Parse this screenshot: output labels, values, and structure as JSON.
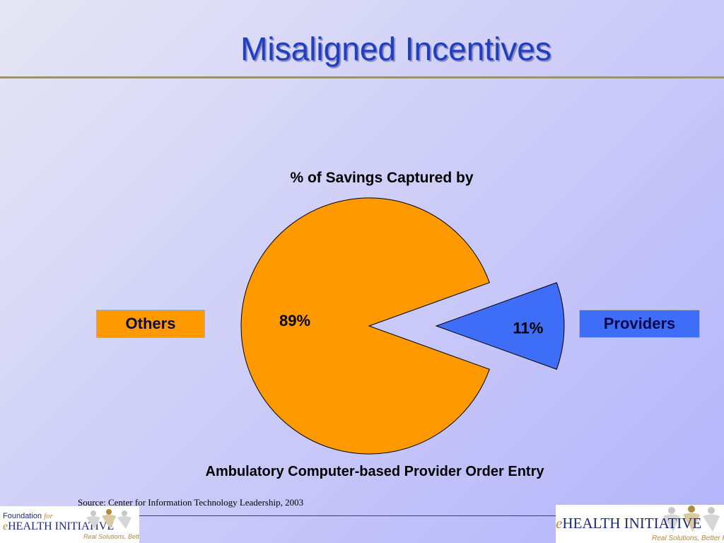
{
  "slide": {
    "title": "Misaligned Incentives",
    "source": "Source:  Center for Information Technology Leadership, 2003"
  },
  "chart_data": {
    "type": "pie",
    "title": "% of Savings Captured by",
    "xlabel": "Ambulatory Computer-based Provider Order Entry",
    "slices": [
      {
        "label": "Others",
        "value": 89,
        "value_label": "89%",
        "color": "#ff9900",
        "exploded": false
      },
      {
        "label": "Providers",
        "value": 11,
        "value_label": "11%",
        "color": "#3e6ef8",
        "exploded": true
      }
    ]
  },
  "logos": {
    "left": {
      "prefix": "Foundation",
      "prefix_for": "for",
      "brand_e": "e",
      "brand": "HEALTH INITIATIVE",
      "tagline": "Real Solutions, Better Health"
    },
    "right": {
      "brand_e": "e",
      "brand": "HEALTH INITIATIVE",
      "tagline": "Real Solutions, Better Health"
    }
  },
  "colors": {
    "title": "#1f3fbf",
    "rule": "#9c8f72",
    "others": "#ff9900",
    "providers": "#3e6ef8"
  }
}
